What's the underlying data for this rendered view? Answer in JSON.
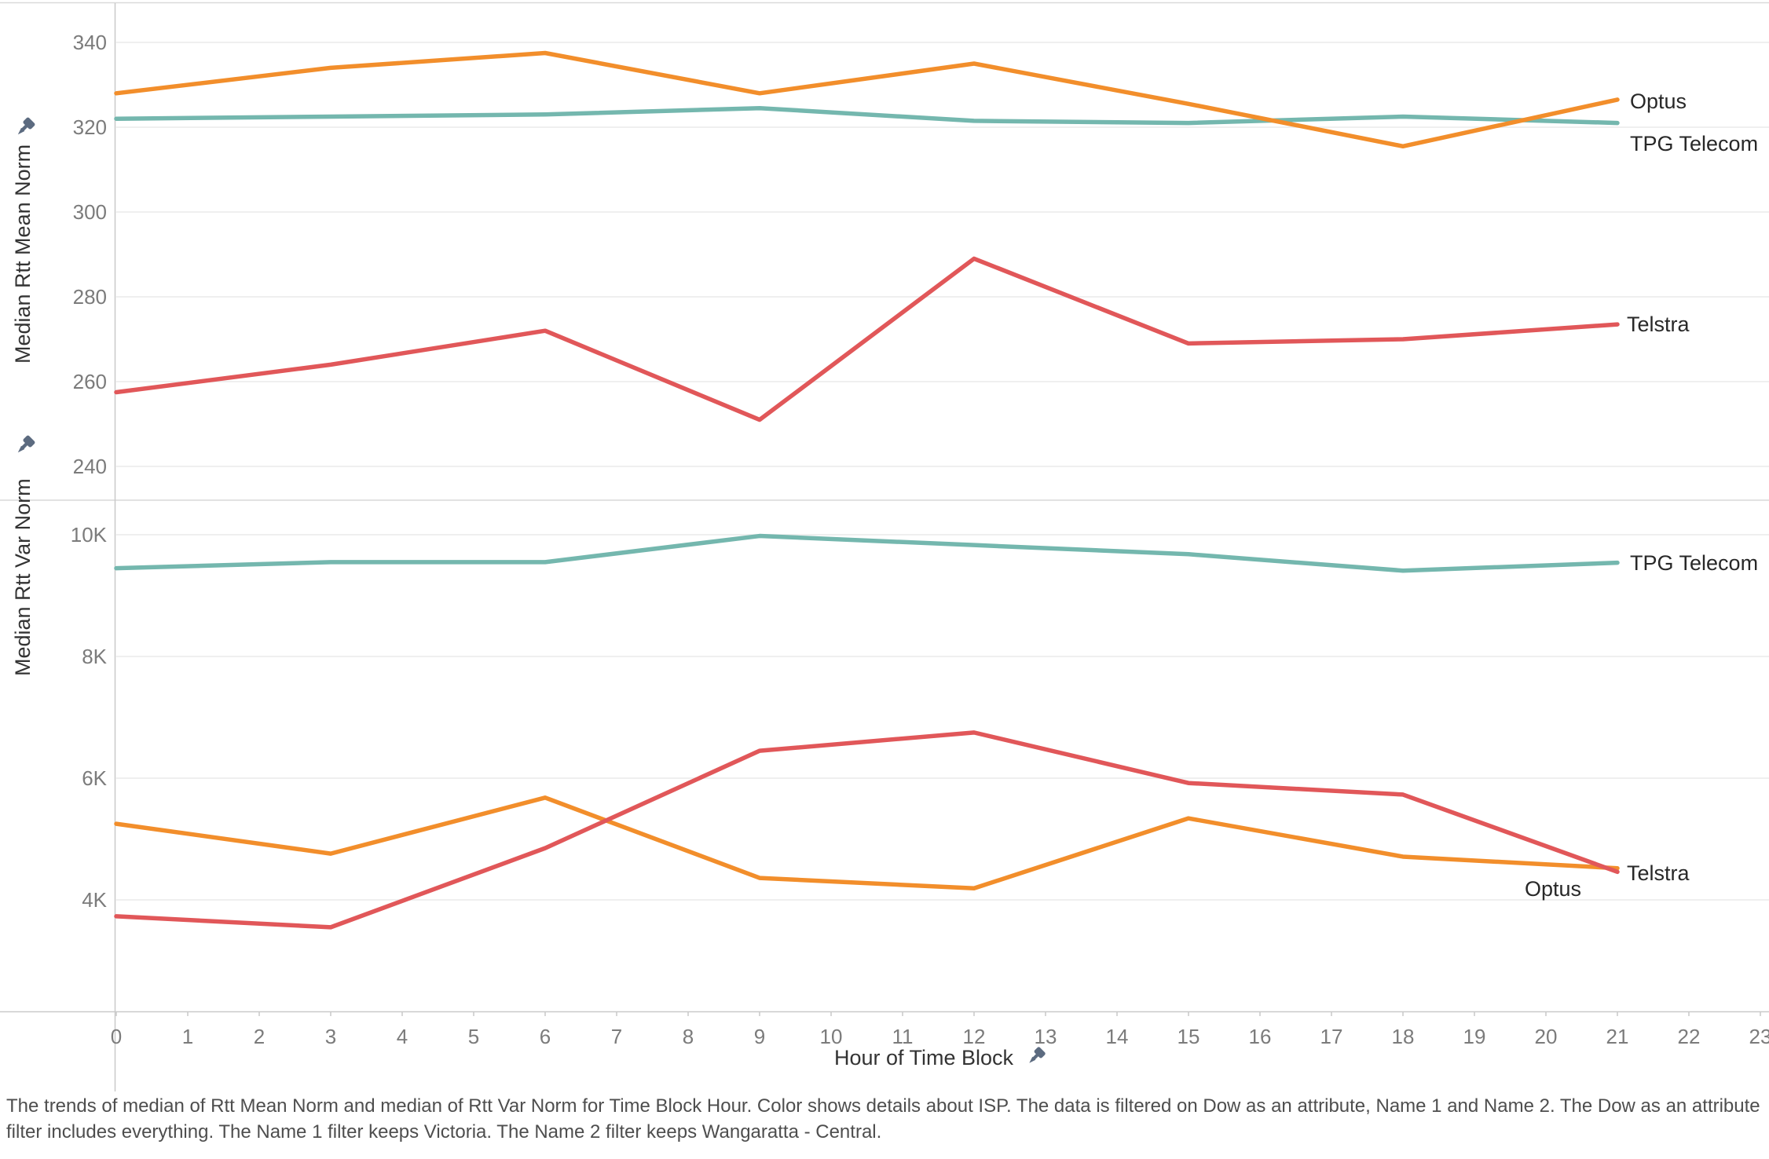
{
  "caption": "The trends of median of Rtt Mean Norm and median of Rtt Var Norm for Time Block Hour.  Color shows details about ISP. The data is filtered on Dow as an attribute, Name 1 and Name 2. The Dow as an attribute filter includes everything. The Name 1 filter keeps Victoria. The Name 2 filter keeps Wangaratta - Central.",
  "colors": {
    "optus": "#f28e2b",
    "tpg": "#74b7ae",
    "telstra": "#e15759",
    "pin": "#5c6b80",
    "gridline": "#efefef",
    "axis_line": "#c9c9c9",
    "pane_border": "#d9d9d9"
  },
  "x_axis": {
    "title": "Hour of Time Block",
    "hour_labels": [
      "0",
      "1",
      "2",
      "3",
      "4",
      "5",
      "6",
      "7",
      "8",
      "9",
      "10",
      "11",
      "12",
      "13",
      "14",
      "15",
      "16",
      "17",
      "18",
      "19",
      "20",
      "21",
      "22",
      "23"
    ]
  },
  "chart_data": [
    {
      "type": "line",
      "pane": "mean",
      "ylabel": "Median Rtt Mean Norm",
      "xlabel": "Hour of Time Block",
      "ylim": [
        232,
        349
      ],
      "grid": "horizontal",
      "legend_position": "line-end-labels",
      "yticks": [
        {
          "v": 240,
          "label": "240"
        },
        {
          "v": 260,
          "label": "260"
        },
        {
          "v": 280,
          "label": "280"
        },
        {
          "v": 300,
          "label": "300"
        },
        {
          "v": 320,
          "label": "320"
        },
        {
          "v": 340,
          "label": "340"
        }
      ],
      "x": [
        0,
        3,
        6,
        9,
        12,
        15,
        18,
        21
      ],
      "series": [
        {
          "name": "TPG Telecom",
          "color": "#74b7ae",
          "end_label": "TPG Telecom",
          "values": [
            322,
            322.5,
            323,
            324.5,
            321.5,
            321,
            322.5,
            321
          ]
        },
        {
          "name": "Telstra",
          "color": "#e15759",
          "end_label": "Telstra",
          "values": [
            257.5,
            264,
            272,
            251,
            289,
            269,
            270,
            273.5
          ]
        },
        {
          "name": "Optus",
          "color": "#f28e2b",
          "end_label": "Optus",
          "values": [
            328,
            334,
            337.5,
            328,
            335,
            325.5,
            315.5,
            326.5
          ]
        }
      ]
    },
    {
      "type": "line",
      "pane": "var",
      "ylabel": "Median Rtt Var Norm",
      "xlabel": "Hour of Time Block",
      "ylim": [
        2100,
        10600
      ],
      "grid": "horizontal",
      "legend_position": "line-end-labels",
      "yticks": [
        {
          "v": 4000,
          "label": "4K"
        },
        {
          "v": 6000,
          "label": "6K"
        },
        {
          "v": 8000,
          "label": "8K"
        },
        {
          "v": 10000,
          "label": "10K"
        }
      ],
      "x": [
        0,
        3,
        6,
        9,
        12,
        15,
        18,
        21
      ],
      "series": [
        {
          "name": "TPG Telecom",
          "color": "#74b7ae",
          "end_label": "TPG Telecom",
          "values": [
            9450,
            9550,
            9550,
            9980,
            9830,
            9680,
            9410,
            9540
          ]
        },
        {
          "name": "Optus",
          "color": "#f28e2b",
          "end_label": "Optus",
          "values": [
            5250,
            4760,
            5680,
            4360,
            4190,
            5340,
            4710,
            4520
          ]
        },
        {
          "name": "Telstra",
          "color": "#e15759",
          "end_label": "Telstra",
          "values": [
            3730,
            3550,
            4850,
            6450,
            6750,
            5920,
            5730,
            4460
          ]
        }
      ]
    }
  ]
}
